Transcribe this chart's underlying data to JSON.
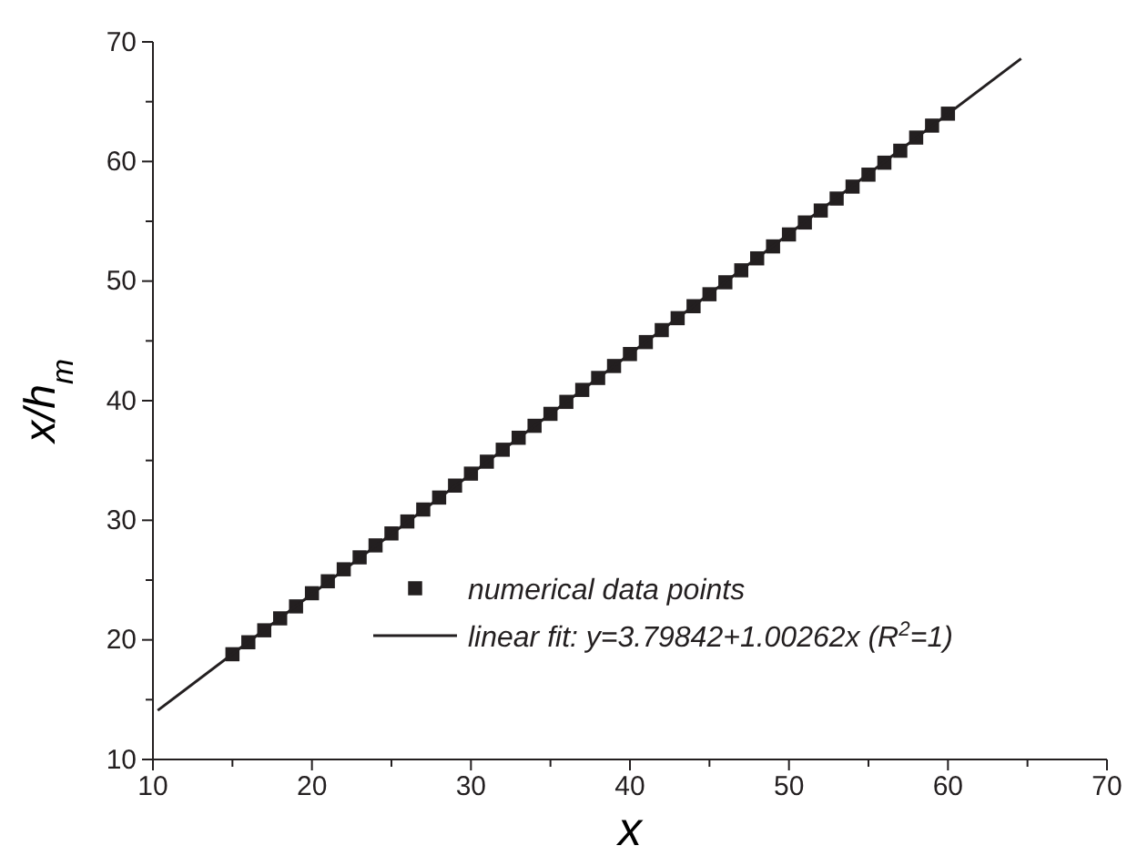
{
  "chart_data": {
    "type": "scatter",
    "xlabel": "x",
    "ylabel": "x/h$_{m}$",
    "xlim": [
      10,
      70
    ],
    "ylim": [
      10,
      70
    ],
    "xticks": [
      10,
      {
        "value": 15,
        "label": null
      },
      20,
      {
        "value": 25,
        "label": null
      },
      30,
      {
        "value": 35,
        "label": null
      },
      40,
      {
        "value": 45,
        "label": null
      },
      50,
      {
        "value": 55,
        "label": null
      },
      60,
      {
        "value": 65,
        "label": null
      },
      70
    ],
    "yticks": [
      10,
      {
        "value": 15,
        "label": null
      },
      20,
      {
        "value": 25,
        "label": null
      },
      30,
      {
        "value": 35,
        "label": null
      },
      40,
      {
        "value": 45,
        "label": null
      },
      50,
      {
        "value": 55,
        "label": null
      },
      60,
      {
        "value": 65,
        "label": null
      },
      70
    ],
    "grid": false,
    "legend": "bottom right",
    "series": [
      {
        "name": "numerical data points",
        "marker": "square",
        "color": "#231f20",
        "x": [
          15,
          16,
          17,
          18,
          19,
          20,
          21,
          22,
          23,
          24,
          25,
          26,
          27,
          28,
          29,
          30,
          31,
          32,
          33,
          34,
          35,
          36,
          37,
          38,
          39,
          40,
          41,
          42,
          43,
          44,
          45,
          46,
          47,
          48,
          49,
          50,
          51,
          52,
          53,
          54,
          55,
          56,
          57,
          58,
          59,
          60
        ],
        "values": [
          18.8,
          19.8,
          20.8,
          21.8,
          22.8,
          23.9,
          24.9,
          25.9,
          26.9,
          27.9,
          28.9,
          29.9,
          30.9,
          31.9,
          32.9,
          33.9,
          34.9,
          35.9,
          36.9,
          37.9,
          38.9,
          39.9,
          40.9,
          41.9,
          42.9,
          43.9,
          44.9,
          45.9,
          46.9,
          47.9,
          48.9,
          49.9,
          50.9,
          51.9,
          52.9,
          53.9,
          54.9,
          55.9,
          56.9,
          57.9,
          58.9,
          59.9,
          60.9,
          62.0,
          63.0,
          64.0
        ]
      },
      {
        "name": "linear fit: y=3.79842+1.00262x  (R$^{2}$=1)",
        "type": "line",
        "marker": "none",
        "line_style": "solid",
        "color": "#231f20",
        "x": [
          10.3,
          64.6
        ],
        "values": [
          14.1,
          68.6
        ]
      }
    ]
  }
}
